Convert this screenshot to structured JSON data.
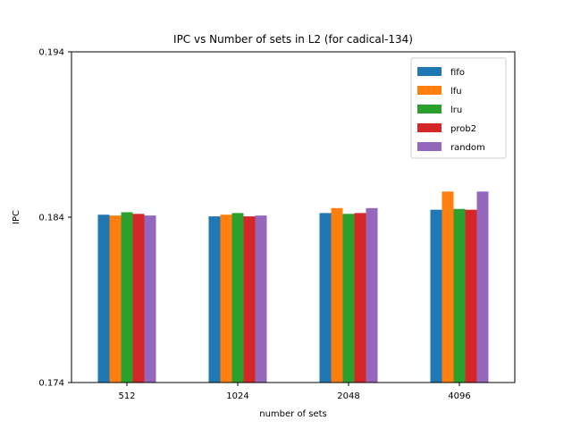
{
  "chart_data": {
    "type": "bar",
    "title": "IPC vs Number of sets in L2 (for cadical-134)",
    "xlabel": "number of sets",
    "ylabel": "IPC",
    "ylim": [
      0.174,
      0.194
    ],
    "yticks": [
      "0.174",
      "0.184",
      "0.194"
    ],
    "categories": [
      "512",
      "1024",
      "2048",
      "4096"
    ],
    "legend_position": "top-right",
    "grid": false,
    "series": [
      {
        "name": "fifo",
        "color": "#1f77b4",
        "values": [
          0.18415,
          0.18405,
          0.18425,
          0.18445
        ]
      },
      {
        "name": "lfu",
        "color": "#ff7f0e",
        "values": [
          0.1841,
          0.18415,
          0.18455,
          0.18555
        ]
      },
      {
        "name": "lru",
        "color": "#2ca02c",
        "values": [
          0.1843,
          0.18425,
          0.1842,
          0.1845
        ]
      },
      {
        "name": "prob2",
        "color": "#d62728",
        "values": [
          0.1842,
          0.18405,
          0.18425,
          0.18445
        ]
      },
      {
        "name": "random",
        "color": "#9467bd",
        "values": [
          0.1841,
          0.1841,
          0.18455,
          0.18555
        ]
      }
    ]
  }
}
